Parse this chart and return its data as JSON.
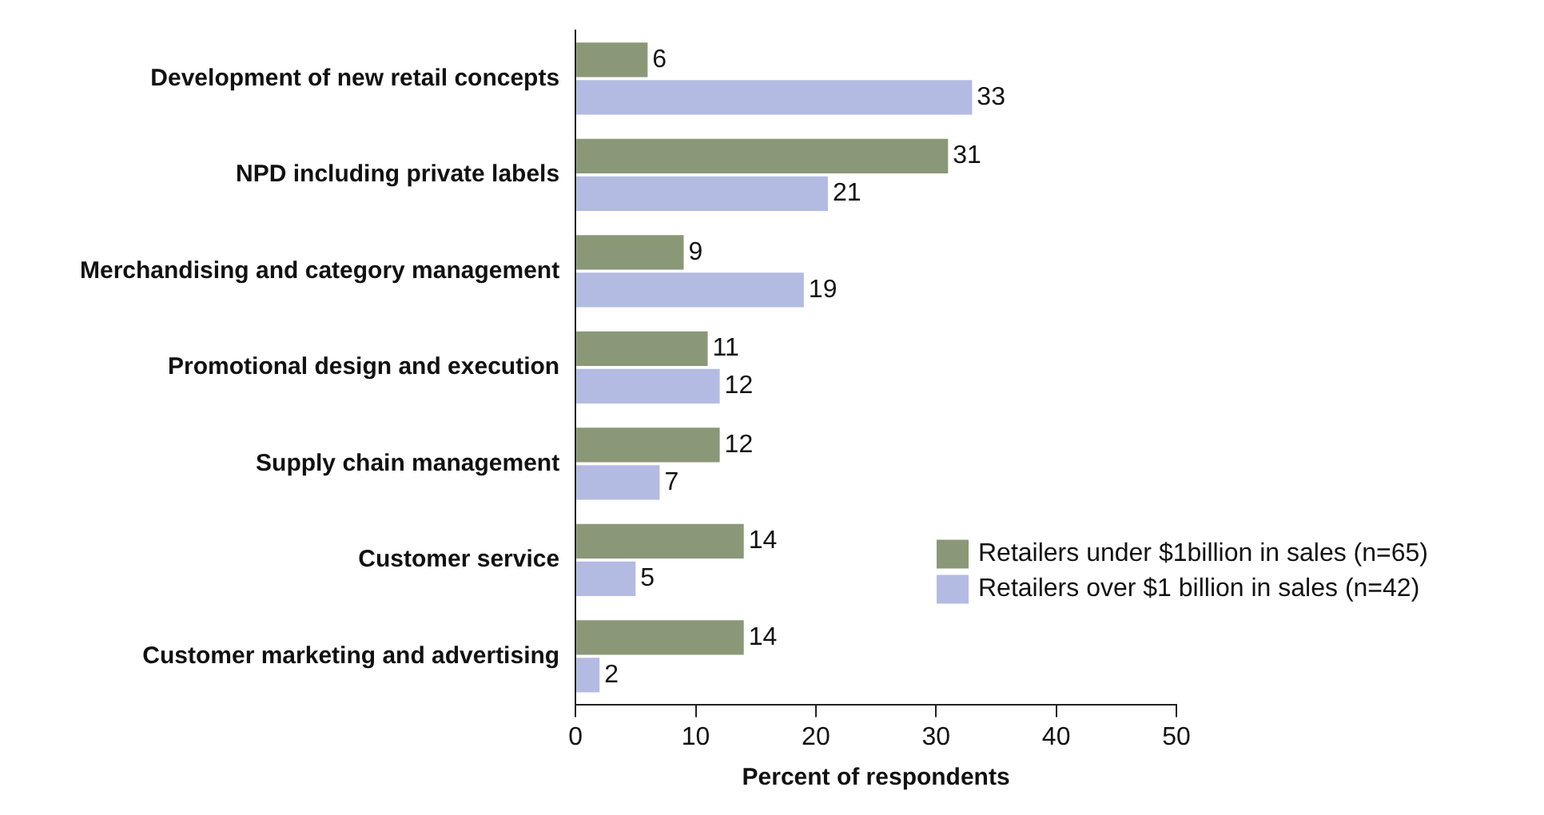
{
  "chart_data": {
    "type": "bar",
    "orientation": "horizontal",
    "xlabel": "Percent of respondents",
    "categories": [
      "Development of new retail concepts",
      "NPD including private labels",
      "Merchandising and category management",
      "Promotional design and execution",
      "Supply chain management",
      "Customer service",
      "Customer marketing and advertising"
    ],
    "series": [
      {
        "name": "Retailers under $1billion in sales (n=65)",
        "color": "#8a9878",
        "values": [
          6,
          31,
          9,
          11,
          12,
          14,
          14
        ]
      },
      {
        "name": "Retailers over $1 billion in sales (n=42)",
        "color": "#b4bbe2",
        "values": [
          33,
          21,
          19,
          12,
          7,
          5,
          2
        ]
      }
    ],
    "xlim": [
      0,
      50
    ],
    "xticks": [
      0,
      10,
      20,
      30,
      40,
      50
    ],
    "grid": false,
    "legend": "bottom right",
    "data_labels": true
  }
}
